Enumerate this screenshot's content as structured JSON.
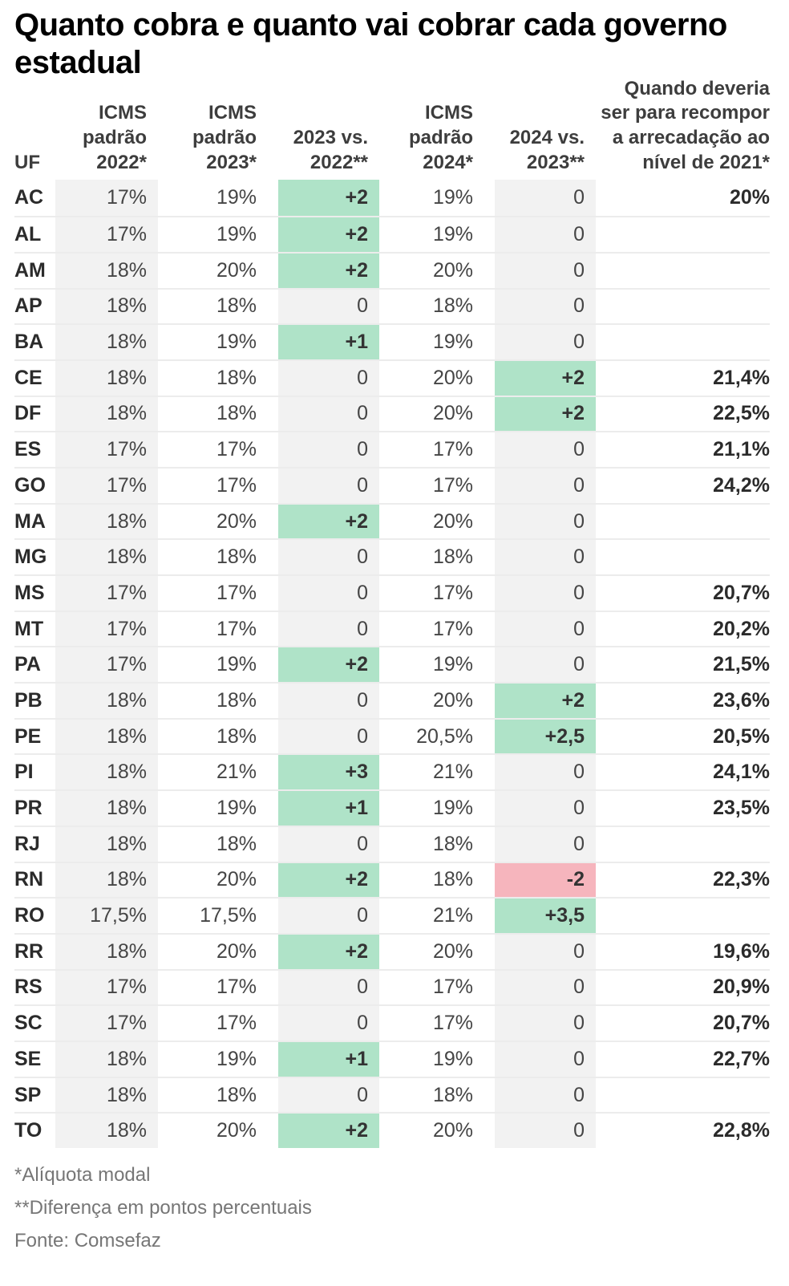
{
  "chart_data": {
    "type": "table",
    "title": "Quanto cobra e quanto vai cobrar cada governo estadual",
    "headers": {
      "uf": "UF",
      "icms_2022": "ICMS padrão 2022*",
      "icms_2023": "ICMS padrão 2023*",
      "diff_2023": "2023 vs. 2022**",
      "icms_2024": "ICMS padrão 2024*",
      "diff_2024": "2024 vs. 2023**",
      "recompose": "Quando deveria ser para recompor a arrecadação ao nível de 2021*"
    },
    "rows": [
      {
        "uf": "AC",
        "icms_2022": "17%",
        "icms_2023": "19%",
        "diff_2023": "+2",
        "diff_2023_trend": "up",
        "icms_2024": "19%",
        "diff_2024": "0",
        "diff_2024_trend": "zero",
        "recompose": "20%"
      },
      {
        "uf": "AL",
        "icms_2022": "17%",
        "icms_2023": "19%",
        "diff_2023": "+2",
        "diff_2023_trend": "up",
        "icms_2024": "19%",
        "diff_2024": "0",
        "diff_2024_trend": "zero",
        "recompose": ""
      },
      {
        "uf": "AM",
        "icms_2022": "18%",
        "icms_2023": "20%",
        "diff_2023": "+2",
        "diff_2023_trend": "up",
        "icms_2024": "20%",
        "diff_2024": "0",
        "diff_2024_trend": "zero",
        "recompose": ""
      },
      {
        "uf": "AP",
        "icms_2022": "18%",
        "icms_2023": "18%",
        "diff_2023": "0",
        "diff_2023_trend": "zero",
        "icms_2024": "18%",
        "diff_2024": "0",
        "diff_2024_trend": "zero",
        "recompose": ""
      },
      {
        "uf": "BA",
        "icms_2022": "18%",
        "icms_2023": "19%",
        "diff_2023": "+1",
        "diff_2023_trend": "up",
        "icms_2024": "19%",
        "diff_2024": "0",
        "diff_2024_trend": "zero",
        "recompose": ""
      },
      {
        "uf": "CE",
        "icms_2022": "18%",
        "icms_2023": "18%",
        "diff_2023": "0",
        "diff_2023_trend": "zero",
        "icms_2024": "20%",
        "diff_2024": "+2",
        "diff_2024_trend": "up",
        "recompose": "21,4%"
      },
      {
        "uf": "DF",
        "icms_2022": "18%",
        "icms_2023": "18%",
        "diff_2023": "0",
        "diff_2023_trend": "zero",
        "icms_2024": "20%",
        "diff_2024": "+2",
        "diff_2024_trend": "up",
        "recompose": "22,5%"
      },
      {
        "uf": "ES",
        "icms_2022": "17%",
        "icms_2023": "17%",
        "diff_2023": "0",
        "diff_2023_trend": "zero",
        "icms_2024": "17%",
        "diff_2024": "0",
        "diff_2024_trend": "zero",
        "recompose": "21,1%"
      },
      {
        "uf": "GO",
        "icms_2022": "17%",
        "icms_2023": "17%",
        "diff_2023": "0",
        "diff_2023_trend": "zero",
        "icms_2024": "17%",
        "diff_2024": "0",
        "diff_2024_trend": "zero",
        "recompose": "24,2%"
      },
      {
        "uf": "MA",
        "icms_2022": "18%",
        "icms_2023": "20%",
        "diff_2023": "+2",
        "diff_2023_trend": "up",
        "icms_2024": "20%",
        "diff_2024": "0",
        "diff_2024_trend": "zero",
        "recompose": ""
      },
      {
        "uf": "MG",
        "icms_2022": "18%",
        "icms_2023": "18%",
        "diff_2023": "0",
        "diff_2023_trend": "zero",
        "icms_2024": "18%",
        "diff_2024": "0",
        "diff_2024_trend": "zero",
        "recompose": ""
      },
      {
        "uf": "MS",
        "icms_2022": "17%",
        "icms_2023": "17%",
        "diff_2023": "0",
        "diff_2023_trend": "zero",
        "icms_2024": "17%",
        "diff_2024": "0",
        "diff_2024_trend": "zero",
        "recompose": "20,7%"
      },
      {
        "uf": "MT",
        "icms_2022": "17%",
        "icms_2023": "17%",
        "diff_2023": "0",
        "diff_2023_trend": "zero",
        "icms_2024": "17%",
        "diff_2024": "0",
        "diff_2024_trend": "zero",
        "recompose": "20,2%"
      },
      {
        "uf": "PA",
        "icms_2022": "17%",
        "icms_2023": "19%",
        "diff_2023": "+2",
        "diff_2023_trend": "up",
        "icms_2024": "19%",
        "diff_2024": "0",
        "diff_2024_trend": "zero",
        "recompose": "21,5%"
      },
      {
        "uf": "PB",
        "icms_2022": "18%",
        "icms_2023": "18%",
        "diff_2023": "0",
        "diff_2023_trend": "zero",
        "icms_2024": "20%",
        "diff_2024": "+2",
        "diff_2024_trend": "up",
        "recompose": "23,6%"
      },
      {
        "uf": "PE",
        "icms_2022": "18%",
        "icms_2023": "18%",
        "diff_2023": "0",
        "diff_2023_trend": "zero",
        "icms_2024": "20,5%",
        "diff_2024": "+2,5",
        "diff_2024_trend": "up",
        "recompose": "20,5%"
      },
      {
        "uf": "PI",
        "icms_2022": "18%",
        "icms_2023": "21%",
        "diff_2023": "+3",
        "diff_2023_trend": "up",
        "icms_2024": "21%",
        "diff_2024": "0",
        "diff_2024_trend": "zero",
        "recompose": "24,1%"
      },
      {
        "uf": "PR",
        "icms_2022": "18%",
        "icms_2023": "19%",
        "diff_2023": "+1",
        "diff_2023_trend": "up",
        "icms_2024": "19%",
        "diff_2024": "0",
        "diff_2024_trend": "zero",
        "recompose": "23,5%"
      },
      {
        "uf": "RJ",
        "icms_2022": "18%",
        "icms_2023": "18%",
        "diff_2023": "0",
        "diff_2023_trend": "zero",
        "icms_2024": "18%",
        "diff_2024": "0",
        "diff_2024_trend": "zero",
        "recompose": ""
      },
      {
        "uf": "RN",
        "icms_2022": "18%",
        "icms_2023": "20%",
        "diff_2023": "+2",
        "diff_2023_trend": "up",
        "icms_2024": "18%",
        "diff_2024": "-2",
        "diff_2024_trend": "down",
        "recompose": "22,3%"
      },
      {
        "uf": "RO",
        "icms_2022": "17,5%",
        "icms_2023": "17,5%",
        "diff_2023": "0",
        "diff_2023_trend": "zero",
        "icms_2024": "21%",
        "diff_2024": "+3,5",
        "diff_2024_trend": "up",
        "recompose": ""
      },
      {
        "uf": "RR",
        "icms_2022": "18%",
        "icms_2023": "20%",
        "diff_2023": "+2",
        "diff_2023_trend": "up",
        "icms_2024": "20%",
        "diff_2024": "0",
        "diff_2024_trend": "zero",
        "recompose": "19,6%"
      },
      {
        "uf": "RS",
        "icms_2022": "17%",
        "icms_2023": "17%",
        "diff_2023": "0",
        "diff_2023_trend": "zero",
        "icms_2024": "17%",
        "diff_2024": "0",
        "diff_2024_trend": "zero",
        "recompose": "20,9%"
      },
      {
        "uf": "SC",
        "icms_2022": "17%",
        "icms_2023": "17%",
        "diff_2023": "0",
        "diff_2023_trend": "zero",
        "icms_2024": "17%",
        "diff_2024": "0",
        "diff_2024_trend": "zero",
        "recompose": "20,7%"
      },
      {
        "uf": "SE",
        "icms_2022": "18%",
        "icms_2023": "19%",
        "diff_2023": "+1",
        "diff_2023_trend": "up",
        "icms_2024": "19%",
        "diff_2024": "0",
        "diff_2024_trend": "zero",
        "recompose": "22,7%"
      },
      {
        "uf": "SP",
        "icms_2022": "18%",
        "icms_2023": "18%",
        "diff_2023": "0",
        "diff_2023_trend": "zero",
        "icms_2024": "18%",
        "diff_2024": "0",
        "diff_2024_trend": "zero",
        "recompose": ""
      },
      {
        "uf": "TO",
        "icms_2022": "18%",
        "icms_2023": "20%",
        "diff_2023": "+2",
        "diff_2023_trend": "up",
        "icms_2024": "20%",
        "diff_2024": "0",
        "diff_2024_trend": "zero",
        "recompose": "22,8%"
      }
    ],
    "footnotes": [
      "*Alíquota modal",
      "**Diferença em pontos percentuais"
    ],
    "source": "Fonte: Comsefaz",
    "colors": {
      "increase_bg": "#afe3c8",
      "decrease_bg": "#f6b5bd",
      "neutral_bg": "#f2f2f2"
    }
  }
}
